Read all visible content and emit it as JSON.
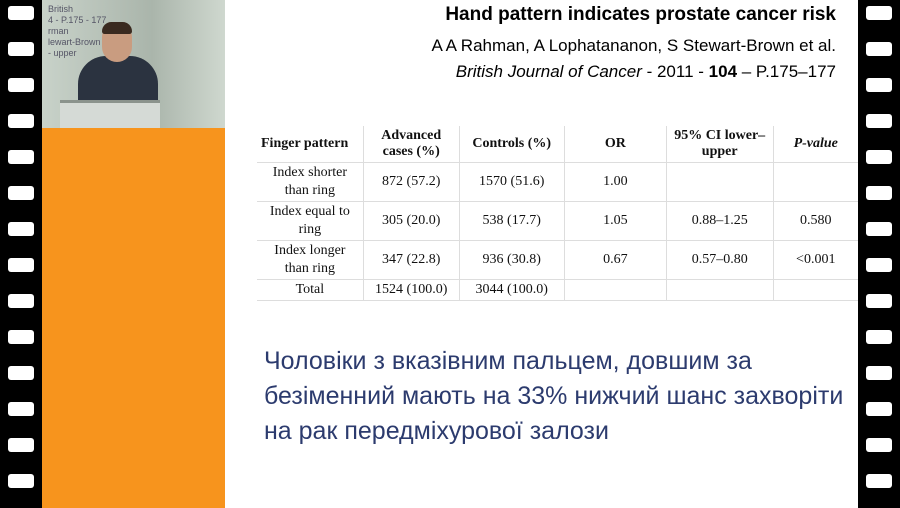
{
  "video": {
    "screen_text": [
      "British",
      "4 - P.175 - 177",
      "rman",
      "lewart-Brown",
      "- upper"
    ]
  },
  "slide": {
    "title": "Hand pattern indicates prostate cancer risk",
    "authors": "A A Rahman, A Lophatananon, S Stewart-Brown et al.",
    "journal_name": "British Journal of Cancer",
    "journal_sep1": " - 2011 - ",
    "journal_volume": "104",
    "journal_pages": " – P.175–177",
    "table": {
      "headers": [
        "Finger pattern",
        "Advanced cases (%)",
        "Controls (%)",
        "OR",
        "95% CI lower–upper",
        "P-value"
      ],
      "rows": [
        [
          "Index shorter than ring",
          "872 (57.2)",
          "1570 (51.6)",
          "1.00",
          "",
          ""
        ],
        [
          "Index equal to ring",
          "305 (20.0)",
          "538 (17.7)",
          "1.05",
          "0.88–1.25",
          "0.580"
        ],
        [
          "Index longer than ring",
          "347 (22.8)",
          "936 (30.8)",
          "0.67",
          "0.57–0.80",
          "<0.001"
        ],
        [
          "Total",
          "1524 (100.0)",
          "3044 (100.0)",
          "",
          "",
          ""
        ]
      ]
    },
    "conclusion": "Чоловіки з вказівним пальцем, довшим за безіменний мають на 33% нижчий шанс захворіти на рак передміхурової залози"
  },
  "colors": {
    "accent_orange": "#f7941d",
    "conclusion_text": "#2c3b6e"
  }
}
